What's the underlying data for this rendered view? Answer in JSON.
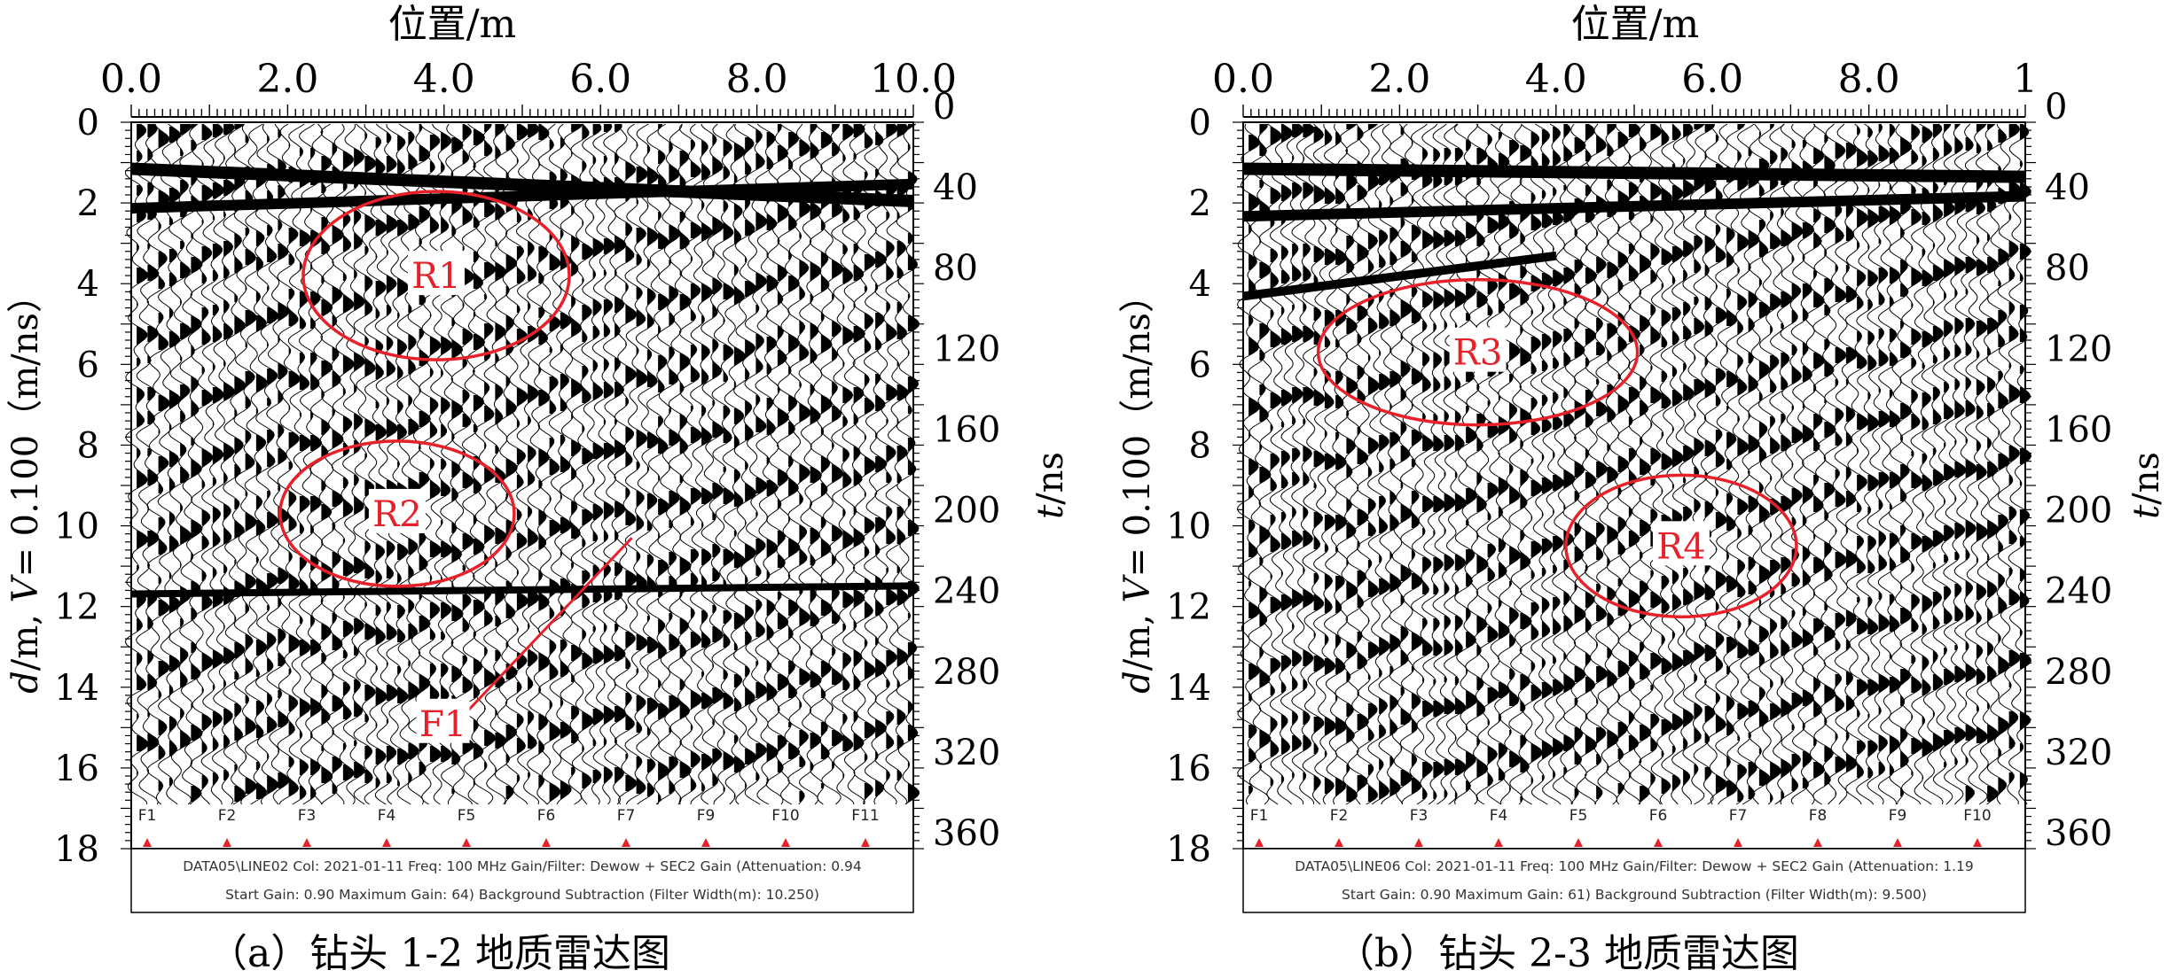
{
  "figure": {
    "top_axis_label": "位置/m",
    "left_axis_label": "d/m, V= 0.100（m/ns）",
    "left_axis_label_d": "d",
    "left_axis_label_rest": "/m, ",
    "left_axis_label_V": "V",
    "left_axis_label_tail": "= 0.100（m/ns）",
    "right_axis_label_t": "t",
    "right_axis_label_rest": "/ns",
    "depth_ticks": [
      "0",
      "2",
      "4",
      "6",
      "8",
      "10",
      "12",
      "14",
      "16",
      "18"
    ],
    "time_ticks": [
      "0",
      "40",
      "80",
      "120",
      "160",
      "200",
      "240",
      "280",
      "320",
      "360"
    ],
    "colors": {
      "annotation": "#e8202a",
      "trace": "#000000",
      "background": "#ffffff"
    }
  },
  "panels": [
    {
      "id": "a",
      "caption": "（a）钻头 1-2 地质雷达图",
      "position_ticks": [
        "0.0",
        "2.0",
        "4.0",
        "6.0",
        "8.0",
        "10.0"
      ],
      "markers": [
        "F1",
        "F2",
        "F3",
        "F4",
        "F5",
        "F6",
        "F7",
        "F9",
        "F10",
        "F11"
      ],
      "info_line1": "DATA05\\LINE02  Col: 2021-01-11  Freq: 100 MHz Gain/Filter: Dewow + SEC2 Gain (Attenuation: 0.94",
      "info_line2": "Start Gain: 0.90 Maximum Gain: 64) Background Subtraction (Filter Width(m): 10.250)",
      "annotations": [
        {
          "label": "R1",
          "center_x": 3.9,
          "center_depth": 3.8
        },
        {
          "label": "R2",
          "center_x": 3.4,
          "center_depth": 9.7
        },
        {
          "label": "F1",
          "center_x": 4.1,
          "center_depth": 14.9
        }
      ]
    },
    {
      "id": "b",
      "caption": "（b）钻头 2-3 地质雷达图",
      "position_ticks": [
        "0.0",
        "2.0",
        "4.0",
        "6.0",
        "8.0",
        "1"
      ],
      "markers": [
        "F1",
        "F2",
        "F3",
        "F4",
        "F5",
        "F6",
        "F7",
        "F8",
        "F9",
        "F10"
      ],
      "info_line1": "DATA05\\LINE06  Col: 2021-01-11  Freq: 100 MHz Gain/Filter: Dewow + SEC2 Gain (Attenuation: 1.19",
      "info_line2": "Start Gain: 0.90 Maximum Gain: 61) Background Subtraction (Filter Width(m): 9.500)",
      "annotations": [
        {
          "label": "R3",
          "center_x": 3.0,
          "center_depth": 5.7
        },
        {
          "label": "R4",
          "center_x": 5.6,
          "center_depth": 10.5
        }
      ]
    }
  ]
}
